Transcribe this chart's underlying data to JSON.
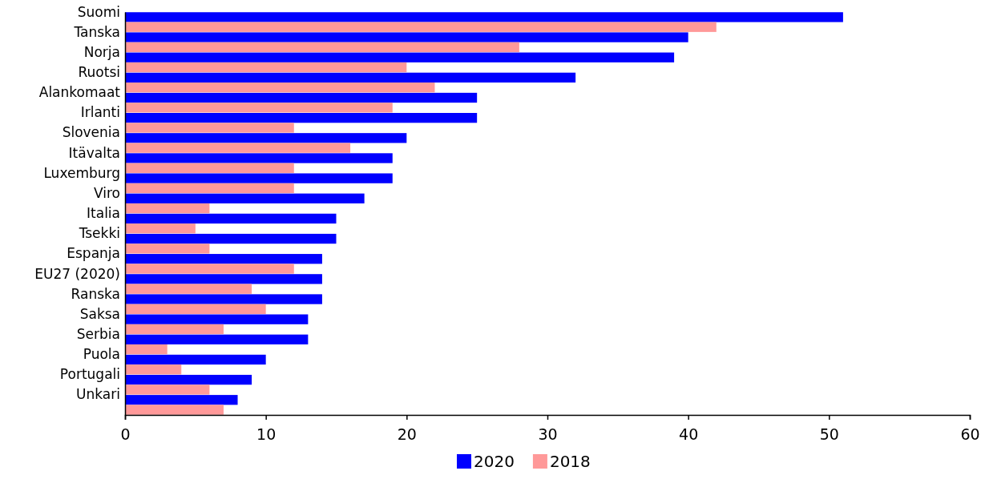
{
  "chart_data": {
    "type": "bar",
    "orientation": "horizontal",
    "categories": [
      "Suomi",
      "Tanska",
      "Norja",
      "Ruotsi",
      "Alankomaat",
      "Irlanti",
      "Slovenia",
      "Itävalta",
      "Luxemburg",
      "Viro",
      "Italia",
      "Tsekki",
      "Espanja",
      "EU27 (2020)",
      "Ranska",
      "Saksa",
      "Serbia",
      "Puola",
      "Portugali",
      "Unkari"
    ],
    "series": [
      {
        "name": "2020",
        "color": "#0000ff",
        "values": [
          51,
          40,
          39,
          32,
          25,
          25,
          20,
          19,
          19,
          17,
          15,
          15,
          14,
          14,
          14,
          13,
          13,
          10,
          9,
          8
        ]
      },
      {
        "name": "2018",
        "color": "#ff9999",
        "values": [
          42,
          28,
          20,
          22,
          19,
          12,
          16,
          12,
          12,
          6,
          5,
          6,
          12,
          9,
          10,
          7,
          3,
          4,
          6,
          7
        ]
      }
    ],
    "xlim": [
      0,
      60
    ],
    "xticks": [
      0,
      10,
      20,
      30,
      40,
      50,
      60
    ],
    "legend": "bottom"
  }
}
